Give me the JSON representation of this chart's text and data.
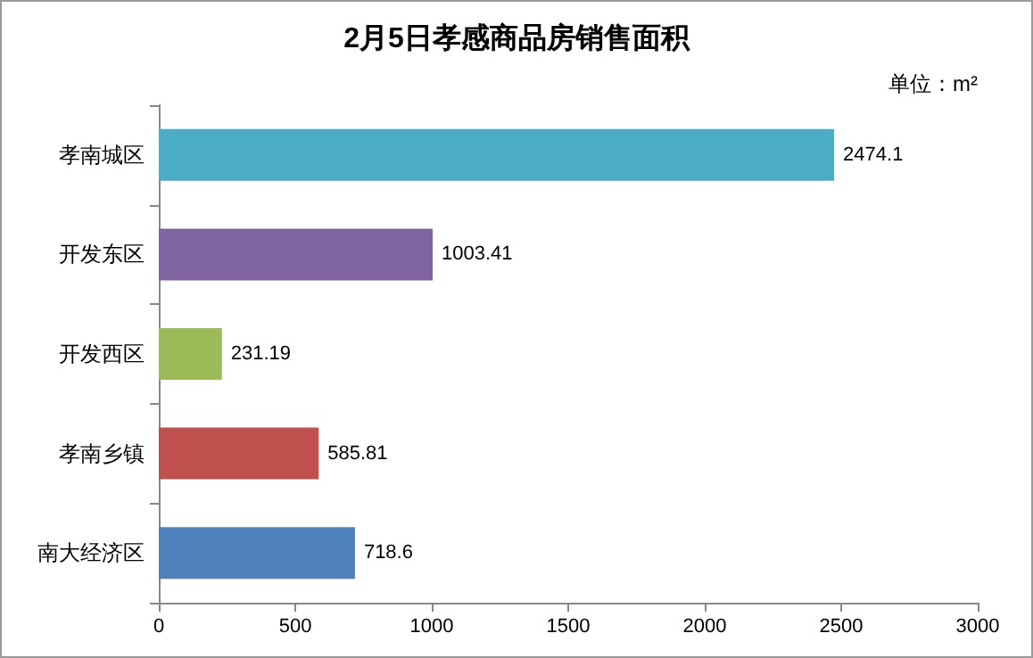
{
  "chart_data": {
    "type": "bar",
    "orientation": "horizontal",
    "title": "2月5日孝感商品房销售面积",
    "annotations": [
      "单位：m²"
    ],
    "categories": [
      "孝南城区",
      "开发东区",
      "开发西区",
      "孝南乡镇",
      "南大经济区"
    ],
    "values": [
      2474.1,
      1003.41,
      231.19,
      585.81,
      718.6
    ],
    "colors": [
      "#4bacc6",
      "#8064a2",
      "#9bbb59",
      "#c0504d",
      "#4f81bd"
    ],
    "xlim": [
      0,
      3000
    ],
    "xticks": [
      0,
      500,
      1000,
      1500,
      2000,
      2500,
      3000
    ],
    "grid": false,
    "data_labels": true
  }
}
